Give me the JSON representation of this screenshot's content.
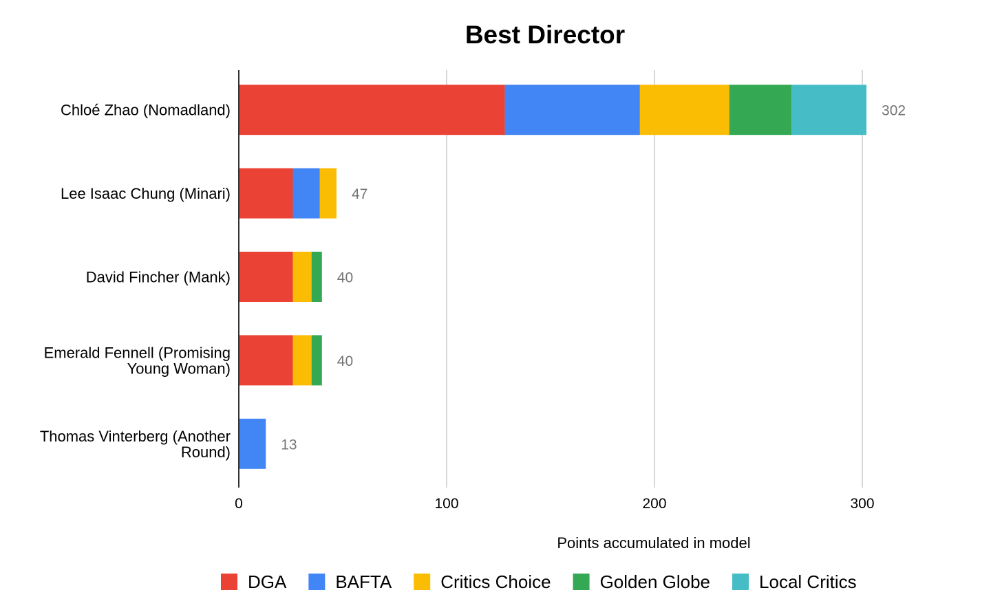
{
  "chart_data": {
    "type": "bar",
    "orientation": "horizontal",
    "stacked": true,
    "title": "Best Director",
    "xlabel": "Points accumulated in model",
    "ylabel": "",
    "xlim": [
      0,
      300
    ],
    "xticks": [
      0,
      100,
      200,
      300
    ],
    "grid": true,
    "legend_position": "bottom",
    "categories": [
      "Chloé Zhao (Nomadland)",
      "Lee Isaac Chung (Minari)",
      "David Fincher (Mank)",
      "Emerald Fennell (Promising Young Woman)",
      "Thomas Vinterberg (Another Round)"
    ],
    "category_lines": [
      [
        "Chloé Zhao (Nomadland)"
      ],
      [
        "Lee Isaac Chung (Minari)"
      ],
      [
        "David Fincher (Mank)"
      ],
      [
        "Emerald Fennell (Promising",
        "Young Woman)"
      ],
      [
        "Thomas Vinterberg (Another",
        "Round)"
      ]
    ],
    "series": [
      {
        "name": "DGA",
        "color": "#ea4335",
        "values": [
          128,
          26,
          26,
          26,
          0
        ]
      },
      {
        "name": "BAFTA",
        "color": "#4285f4",
        "values": [
          65,
          13,
          0,
          0,
          13
        ]
      },
      {
        "name": "Critics Choice",
        "color": "#fbbc04",
        "values": [
          43,
          8,
          9,
          9,
          0
        ]
      },
      {
        "name": "Golden Globe",
        "color": "#34a853",
        "values": [
          30,
          0,
          5,
          5,
          0
        ]
      },
      {
        "name": "Local Critics",
        "color": "#46bdc6",
        "values": [
          36,
          0,
          0,
          0,
          0
        ]
      }
    ],
    "totals": [
      "302",
      "47",
      "40",
      "40",
      "13"
    ]
  }
}
